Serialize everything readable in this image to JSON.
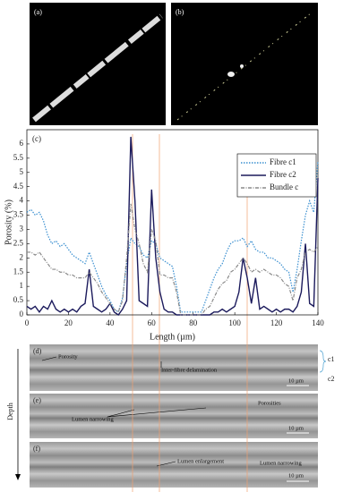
{
  "panels": {
    "a": "(a)",
    "b": "(b)"
  },
  "chart_data": {
    "type": "line",
    "panel_label": "(c)",
    "x_label": "Length (µm)",
    "y_label": "Porosity (%)",
    "x": [
      0,
      2,
      4,
      6,
      8,
      10,
      12,
      14,
      16,
      18,
      20,
      22,
      24,
      26,
      28,
      30,
      32,
      34,
      36,
      38,
      40,
      42,
      44,
      46,
      48,
      50,
      52,
      54,
      56,
      58,
      60,
      62,
      64,
      66,
      68,
      70,
      72,
      74,
      76,
      78,
      80,
      82,
      84,
      86,
      88,
      90,
      92,
      94,
      96,
      98,
      100,
      102,
      104,
      106,
      108,
      110,
      112,
      114,
      116,
      118,
      120,
      122,
      124,
      126,
      128,
      130,
      132,
      134,
      136,
      138,
      140
    ],
    "series": [
      {
        "name": "Fibre c1",
        "color": "#3a8fd0",
        "dash": "1.5 1.5",
        "values": [
          3.6,
          3.7,
          3.5,
          3.6,
          3.3,
          2.8,
          2.5,
          2.6,
          2.4,
          2.5,
          2.3,
          2.1,
          2.0,
          1.9,
          1.8,
          2.2,
          1.8,
          1.4,
          1.0,
          0.7,
          0.5,
          0.2,
          0.1,
          0.6,
          1.8,
          2.7,
          2.5,
          2.4,
          2.1,
          2.0,
          2.6,
          2.5,
          2.0,
          1.9,
          1.8,
          1.7,
          1.0,
          0.1,
          0.1,
          0.1,
          0.1,
          0.1,
          0.1,
          0.5,
          0.9,
          1.3,
          1.6,
          1.8,
          2.2,
          2.5,
          2.6,
          2.6,
          2.7,
          2.4,
          2.6,
          2.3,
          2.2,
          2.2,
          2.0,
          2.0,
          1.9,
          1.8,
          1.6,
          1.5,
          0.8,
          1.6,
          2.6,
          3.5,
          4.0,
          3.6,
          5.4
        ]
      },
      {
        "name": "Fibre c2",
        "color": "#1b1a5c",
        "dash": "none",
        "values": [
          0.3,
          0.2,
          0.3,
          0.1,
          0.3,
          0.2,
          0.5,
          0.2,
          0.1,
          0.2,
          0.1,
          0.2,
          0.1,
          0.3,
          0.4,
          1.6,
          0.3,
          0.2,
          0.1,
          0.2,
          0.4,
          0.1,
          0,
          0.2,
          0.5,
          6.25,
          4.0,
          0.5,
          0.4,
          0.3,
          4.4,
          2.0,
          0.8,
          0.2,
          0.1,
          0.1,
          0,
          0,
          0,
          0,
          0,
          0,
          0,
          0,
          0,
          0.1,
          0.1,
          0.2,
          0.1,
          0.2,
          0.3,
          0.8,
          2.0,
          1.3,
          0.4,
          1.3,
          0.2,
          0.3,
          0.2,
          0.1,
          0.2,
          0.1,
          0.2,
          0.2,
          0.1,
          0.3,
          0.8,
          2.5,
          0.4,
          0.3,
          4.8
        ]
      },
      {
        "name": "Bundle c",
        "color": "#8a8a8a",
        "dash": "4 1.5 1 1.5",
        "values": [
          2.2,
          2.2,
          2.1,
          2.2,
          2.0,
          1.8,
          1.6,
          1.6,
          1.5,
          1.5,
          1.4,
          1.4,
          1.3,
          1.3,
          1.3,
          1.5,
          1.3,
          1.1,
          0.8,
          0.6,
          0.4,
          0.2,
          0.1,
          0.5,
          2.0,
          3.9,
          3.0,
          2.5,
          1.8,
          1.5,
          3.0,
          2.6,
          1.4,
          1.4,
          1.3,
          1.3,
          0.8,
          0,
          0,
          0,
          0,
          0,
          0,
          0.2,
          0.3,
          0.6,
          0.9,
          1.1,
          1.2,
          1.5,
          1.6,
          1.8,
          2.0,
          1.8,
          1.5,
          1.6,
          1.5,
          1.6,
          1.5,
          1.4,
          1.4,
          1.3,
          1.1,
          1.0,
          0.5,
          1.3,
          1.6,
          2.2,
          2.3,
          2.2,
          2.4
        ]
      }
    ],
    "xlim": [
      0,
      140
    ],
    "xticks": [
      0,
      20,
      40,
      60,
      80,
      100,
      120,
      140
    ],
    "ylim": [
      0,
      6.5
    ],
    "yticks": [
      0,
      0.5,
      1,
      1.5,
      2,
      2.5,
      3,
      3.5,
      4,
      4.5,
      5,
      5.5,
      6
    ],
    "legend": "top-right",
    "grid": false
  },
  "images": [
    {
      "label": "(d)",
      "annotations": [
        "Porosity",
        "Inter-fibre delamination"
      ],
      "scale_bar": "10 µm"
    },
    {
      "label": "(e)",
      "annotations": [
        "Lumen narrowing",
        "Porosities"
      ],
      "scale_bar": "10 µm"
    },
    {
      "label": "(f)",
      "annotations": [
        "Lumen enlargement",
        "Lumen narrowing"
      ],
      "scale_bar": "10 µm"
    }
  ],
  "layer_labels": [
    "c1",
    "c2"
  ],
  "depth_label": "Depth"
}
